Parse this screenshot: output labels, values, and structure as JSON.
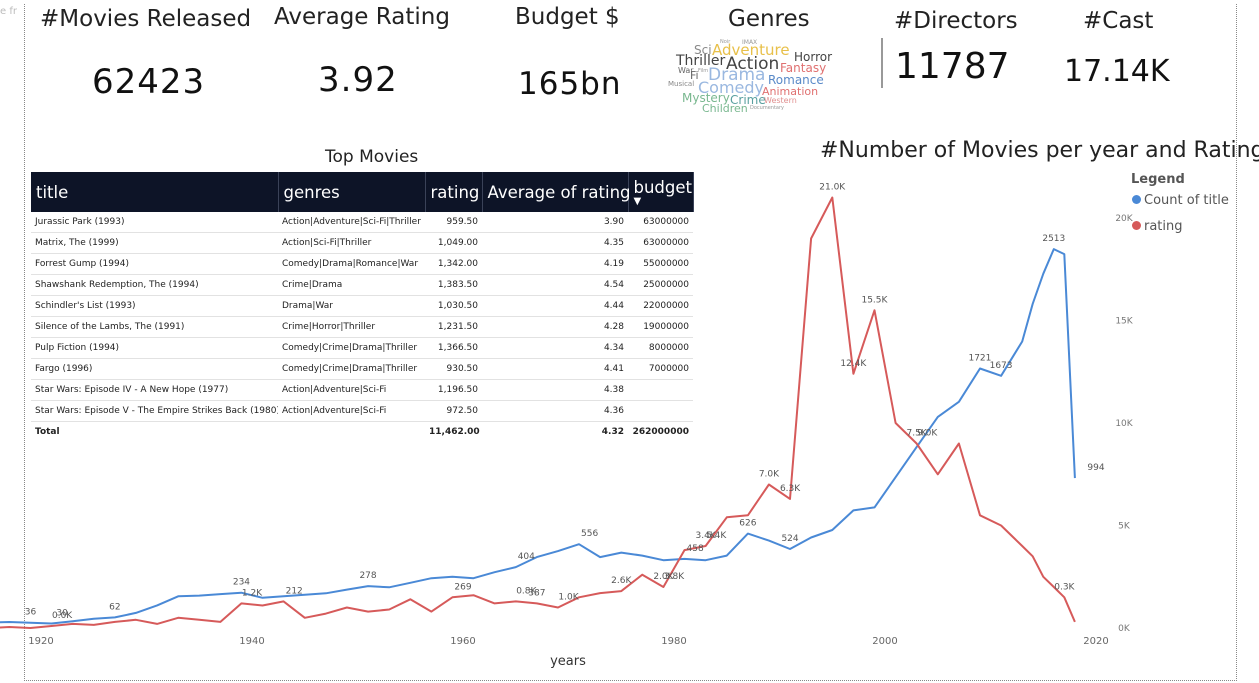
{
  "kpis": [
    {
      "title": "#Movies Released",
      "value": "62423"
    },
    {
      "title": "Average Rating",
      "value": "3.92"
    },
    {
      "title": "Budget $",
      "value": "165bn"
    },
    {
      "title": "Genres",
      "value": ""
    },
    {
      "title": "#Directors",
      "value": "11787"
    },
    {
      "title": "#Cast",
      "value": "17.14K"
    }
  ],
  "wordcloud": [
    {
      "word": "Sci",
      "color": "#8a8a8a"
    },
    {
      "word": "Adventure",
      "color": "#e8c04a"
    },
    {
      "word": "Noir",
      "color": "#999999"
    },
    {
      "word": "IMAX",
      "color": "#999999"
    },
    {
      "word": "Horror",
      "color": "#444444"
    },
    {
      "word": "Thriller",
      "color": "#444444"
    },
    {
      "word": "Action",
      "color": "#444444"
    },
    {
      "word": "Fantasy",
      "color": "#e07070"
    },
    {
      "word": "War",
      "color": "#666666"
    },
    {
      "word": "Fi",
      "color": "#666666"
    },
    {
      "word": "Film",
      "color": "#999999"
    },
    {
      "word": "Drama",
      "color": "#9ab8e0"
    },
    {
      "word": "Romance",
      "color": "#5a8ac8"
    },
    {
      "word": "Musical",
      "color": "#888888"
    },
    {
      "word": "Comedy",
      "color": "#9ab8e0"
    },
    {
      "word": "Animation",
      "color": "#e07070"
    },
    {
      "word": "Mystery",
      "color": "#7ab890"
    },
    {
      "word": "Crime",
      "color": "#5aa0a0"
    },
    {
      "word": "Western",
      "color": "#e09090"
    },
    {
      "word": "Children",
      "color": "#7ab890"
    },
    {
      "word": "Documentary",
      "color": "#999999"
    }
  ],
  "table": {
    "title": "Top Movies",
    "columns": [
      "title",
      "genres",
      "rating",
      "Average of rating",
      "budget"
    ],
    "sort_icon": "sort-descending-icon",
    "rows": [
      [
        "Jurassic Park (1993)",
        "Action|Adventure|Sci-Fi|Thriller",
        "959.50",
        "3.90",
        "63000000"
      ],
      [
        "Matrix, The (1999)",
        "Action|Sci-Fi|Thriller",
        "1,049.00",
        "4.35",
        "63000000"
      ],
      [
        "Forrest Gump (1994)",
        "Comedy|Drama|Romance|War",
        "1,342.00",
        "4.19",
        "55000000"
      ],
      [
        "Shawshank Redemption, The (1994)",
        "Crime|Drama",
        "1,383.50",
        "4.54",
        "25000000"
      ],
      [
        "Schindler's List (1993)",
        "Drama|War",
        "1,030.50",
        "4.44",
        "22000000"
      ],
      [
        "Silence of the Lambs, The (1991)",
        "Crime|Horror|Thriller",
        "1,231.50",
        "4.28",
        "19000000"
      ],
      [
        "Pulp Fiction (1994)",
        "Comedy|Crime|Drama|Thriller",
        "1,366.50",
        "4.34",
        "8000000"
      ],
      [
        "Fargo (1996)",
        "Comedy|Crime|Drama|Thriller",
        "930.50",
        "4.41",
        "7000000"
      ],
      [
        "Star Wars: Episode IV - A New Hope (1977)",
        "Action|Adventure|Sci-Fi",
        "1,196.50",
        "4.38",
        ""
      ],
      [
        "Star Wars: Episode V - The Empire Strikes Back (1980)",
        "Action|Adventure|Sci-Fi",
        "972.50",
        "4.36",
        ""
      ]
    ],
    "total": [
      "Total",
      "",
      "11,462.00",
      "4.32",
      "262000000"
    ]
  },
  "chart_data": {
    "type": "line",
    "title": "#Number of Movies per year and Ratings",
    "xlabel": "years",
    "x_ticks": [
      1920,
      1940,
      1960,
      1980,
      2000,
      2020
    ],
    "right_axis_ticks": [
      "0K",
      "5K",
      "10K",
      "15K",
      "20K"
    ],
    "right_ylim": [
      0,
      20000
    ],
    "legend": {
      "title": "Legend",
      "position": "top-right"
    },
    "series": [
      {
        "name": "Count of title",
        "color": "#4a89d6",
        "x": [
          1915,
          1917,
          1919,
          1921,
          1923,
          1925,
          1927,
          1929,
          1931,
          1933,
          1935,
          1937,
          1939,
          1941,
          1943,
          1945,
          1947,
          1949,
          1951,
          1953,
          1955,
          1957,
          1959,
          1961,
          1963,
          1965,
          1967,
          1969,
          1971,
          1973,
          1975,
          1977,
          1979,
          1981,
          1983,
          1985,
          1987,
          1989,
          1991,
          1993,
          1995,
          1997,
          1999,
          2001,
          2003,
          2005,
          2007,
          2009,
          2011,
          2013,
          2014,
          2015,
          2016,
          2017,
          2018
        ],
        "values": [
          36,
          40,
          35,
          30,
          45,
          62,
          70,
          100,
          150,
          210,
          215,
          225,
          234,
          200,
          210,
          220,
          230,
          255,
          278,
          270,
          300,
          330,
          340,
          330,
          370,
          404,
          470,
          510,
          556,
          470,
          500,
          480,
          450,
          458,
          450,
          480,
          626,
          580,
          524,
          600,
          650,
          780,
          800,
          1000,
          1200,
          1400,
          1500,
          1721,
          1673,
          1900,
          2150,
          2350,
          2513,
          2480,
          994
        ]
      },
      {
        "name": "rating",
        "color": "#d65a5a",
        "x": [
          1915,
          1917,
          1919,
          1921,
          1923,
          1925,
          1927,
          1929,
          1931,
          1933,
          1935,
          1937,
          1939,
          1941,
          1943,
          1945,
          1947,
          1949,
          1951,
          1953,
          1955,
          1957,
          1959,
          1961,
          1963,
          1965,
          1967,
          1969,
          1971,
          1973,
          1975,
          1977,
          1979,
          1981,
          1983,
          1985,
          1987,
          1989,
          1991,
          1993,
          1995,
          1997,
          1999,
          2001,
          2003,
          2005,
          2007,
          2009,
          2011,
          2013,
          2014,
          2015,
          2016,
          2017,
          2018
        ],
        "values": [
          0,
          50,
          0,
          100,
          200,
          150,
          300,
          400,
          200,
          500,
          400,
          300,
          1200,
          1100,
          1300,
          500,
          700,
          1000,
          800,
          900,
          1400,
          800,
          1500,
          1600,
          1200,
          1300,
          1200,
          1000,
          1500,
          1700,
          1800,
          2600,
          2000,
          3800,
          4000,
          5400,
          5500,
          7000,
          6300,
          19000,
          21000,
          12400,
          15500,
          10000,
          9000,
          7500,
          9000,
          5500,
          5000,
          4000,
          3500,
          2500,
          2000,
          1500,
          300
        ]
      }
    ],
    "annotations": [
      {
        "series": "Count of title",
        "x": 1919,
        "label": "36"
      },
      {
        "series": "Count of title",
        "x": 1922,
        "label": "30"
      },
      {
        "series": "Count of title",
        "x": 1927,
        "label": "62"
      },
      {
        "series": "Count of title",
        "x": 1939,
        "label": "234"
      },
      {
        "series": "Count of title",
        "x": 1951,
        "label": "278"
      },
      {
        "series": "Count of title",
        "x": 1966,
        "label": "404"
      },
      {
        "series": "Count of title",
        "x": 1972,
        "label": "556"
      },
      {
        "series": "Count of title",
        "x": 1982,
        "label": "458"
      },
      {
        "series": "Count of title",
        "x": 1987,
        "label": "626"
      },
      {
        "series": "Count of title",
        "x": 1991,
        "label": "524"
      },
      {
        "series": "Count of title",
        "x": 2009,
        "label": "1721"
      },
      {
        "series": "Count of title",
        "x": 2011,
        "label": "1673"
      },
      {
        "series": "Count of title",
        "x": 2016,
        "label": "2513"
      },
      {
        "series": "Count of title",
        "x": 2020,
        "label": "994"
      },
      {
        "series": "rating",
        "x": 1922,
        "label": "0.0K"
      },
      {
        "series": "rating",
        "x": 1940,
        "label": "1.2K"
      },
      {
        "series": "rating",
        "x": 1944,
        "label": "212"
      },
      {
        "series": "rating",
        "x": 1960,
        "label": "269"
      },
      {
        "series": "rating",
        "x": 1967,
        "label": "387"
      },
      {
        "series": "rating",
        "x": 1966,
        "label": "0.8K"
      },
      {
        "series": "rating",
        "x": 1970,
        "label": "1.0K"
      },
      {
        "series": "rating",
        "x": 1975,
        "label": "2.6K"
      },
      {
        "series": "rating",
        "x": 1979,
        "label": "2.0K"
      },
      {
        "series": "rating",
        "x": 1980,
        "label": "3.8K"
      },
      {
        "series": "rating",
        "x": 1983,
        "label": "3.4K"
      },
      {
        "series": "rating",
        "x": 1984,
        "label": "5.4K"
      },
      {
        "series": "rating",
        "x": 1989,
        "label": "7.0K"
      },
      {
        "series": "rating",
        "x": 1991,
        "label": "6.3K"
      },
      {
        "series": "rating",
        "x": 1995,
        "label": "21.0K"
      },
      {
        "series": "rating",
        "x": 1997,
        "label": "12.4K"
      },
      {
        "series": "rating",
        "x": 1999,
        "label": "15.5K"
      },
      {
        "series": "rating",
        "x": 2004,
        "label": "9.0K"
      },
      {
        "series": "rating",
        "x": 2003,
        "label": "7.5K"
      },
      {
        "series": "rating",
        "x": 2017,
        "label": "0.3K"
      }
    ]
  }
}
